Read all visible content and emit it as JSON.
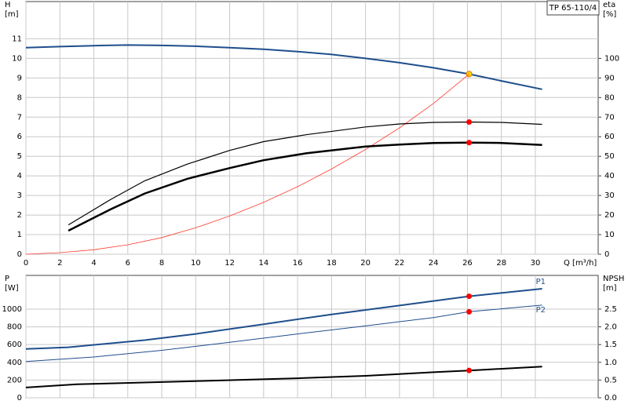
{
  "chart_data": [
    {
      "type": "line",
      "title": "TP 65-110/4",
      "y_label": [
        "H",
        "[m]"
      ],
      "y2_label": [
        "eta",
        "[%]"
      ],
      "x_label": "Q [m³/h]",
      "xlim": [
        0,
        33.7
      ],
      "xticks": [
        0,
        2,
        4,
        6,
        8,
        10,
        12,
        14,
        16,
        18,
        20,
        22,
        24,
        26,
        28,
        30
      ],
      "ylim": [
        0,
        12.9
      ],
      "yticks": [
        0,
        1,
        2,
        3,
        4,
        5,
        6,
        7,
        8,
        9,
        10,
        11
      ],
      "y2lim": [
        0,
        129
      ],
      "y2ticks": [
        0,
        10,
        20,
        30,
        40,
        50,
        60,
        70,
        80,
        90,
        100
      ],
      "grid": true,
      "highlight_x": 26.1,
      "series": [
        {
          "color": "#1f4e8c",
          "width": 2,
          "marker_color": "#ffd700",
          "x": [
            0,
            2,
            4,
            6,
            8,
            10,
            12,
            14,
            16,
            18,
            20,
            22,
            24,
            26.1,
            28,
            30.4
          ],
          "values": [
            10.55,
            10.6,
            10.65,
            10.68,
            10.66,
            10.62,
            10.55,
            10.47,
            10.35,
            10.2,
            10.0,
            9.78,
            9.52,
            9.2,
            8.85,
            8.42
          ]
        },
        {
          "color": "#ff3b2f",
          "width": 0.8,
          "axis": "y2",
          "x": [
            0,
            2,
            4,
            6,
            8,
            10,
            12,
            14,
            16,
            18,
            20,
            22,
            24,
            26.1
          ],
          "values": [
            0,
            0.8,
            2.3,
            4.8,
            8.5,
            13.5,
            19.5,
            26.5,
            34.5,
            43.5,
            53.5,
            64.5,
            77,
            92
          ]
        },
        {
          "color": "#000000",
          "width": 1.2,
          "axis": "y2",
          "marker_color": "#ff0000",
          "x": [
            2.5,
            5,
            7,
            9.5,
            12,
            14,
            16.5,
            20,
            22,
            24,
            26.1,
            28,
            30.4
          ],
          "values": [
            15,
            28,
            37.5,
            46,
            53,
            57.5,
            61,
            65,
            66.5,
            67.3,
            67.5,
            67.3,
            66.3
          ]
        },
        {
          "color": "#000000",
          "width": 2.5,
          "axis": "y2",
          "marker_color": "#ff0000",
          "x": [
            2.5,
            5,
            7,
            9.5,
            12,
            14,
            16.5,
            20,
            22,
            24,
            26.1,
            28,
            30.4
          ],
          "values": [
            12,
            23,
            31,
            38.5,
            44,
            48,
            51.5,
            55,
            56,
            56.8,
            57,
            56.8,
            55.8
          ]
        }
      ]
    },
    {
      "type": "line",
      "y_label": [
        "P",
        "[W]"
      ],
      "y2_label": [
        "NPSH",
        "[m]"
      ],
      "xlim": [
        0,
        33.7
      ],
      "xticks": [
        0,
        2,
        4,
        6,
        8,
        10,
        12,
        14,
        16,
        18,
        20,
        22,
        24,
        26,
        28,
        30
      ],
      "ylim": [
        0,
        1380
      ],
      "yticks": [
        0,
        200,
        400,
        600,
        800,
        1000
      ],
      "y2lim": [
        0,
        3.45
      ],
      "y2ticks": [
        {
          "value": 0,
          "label": "0.0"
        },
        0.5,
        {
          "value": 1,
          "label": "1.0"
        },
        1.5,
        {
          "value": 2,
          "label": "2.0"
        },
        2.5
      ],
      "grid": true,
      "highlight_x": 26.1,
      "series": [
        {
          "name": "P1",
          "color": "#1f4e8c",
          "width": 2,
          "marker_color": "#ff0000",
          "x": [
            0,
            2.5,
            7,
            10,
            14,
            18,
            22,
            26.1,
            30.4
          ],
          "values": [
            550,
            570,
            650,
            720,
            830,
            940,
            1040,
            1145,
            1230
          ]
        },
        {
          "name": "P2",
          "color": "#1f4e8c",
          "width": 1,
          "marker_color": "#ff0000",
          "x": [
            0,
            4,
            8,
            12,
            16,
            20,
            24,
            26.1,
            30.4
          ],
          "values": [
            410,
            460,
            535,
            625,
            720,
            810,
            905,
            970,
            1045
          ]
        },
        {
          "color": "#000000",
          "width": 2,
          "axis": "y2",
          "marker_color": "#ff0000",
          "x": [
            0,
            3,
            10,
            16,
            20,
            24,
            26.1,
            30.4
          ],
          "values": [
            0.29,
            0.38,
            0.47,
            0.55,
            0.62,
            0.72,
            0.77,
            0.88
          ]
        }
      ]
    }
  ]
}
